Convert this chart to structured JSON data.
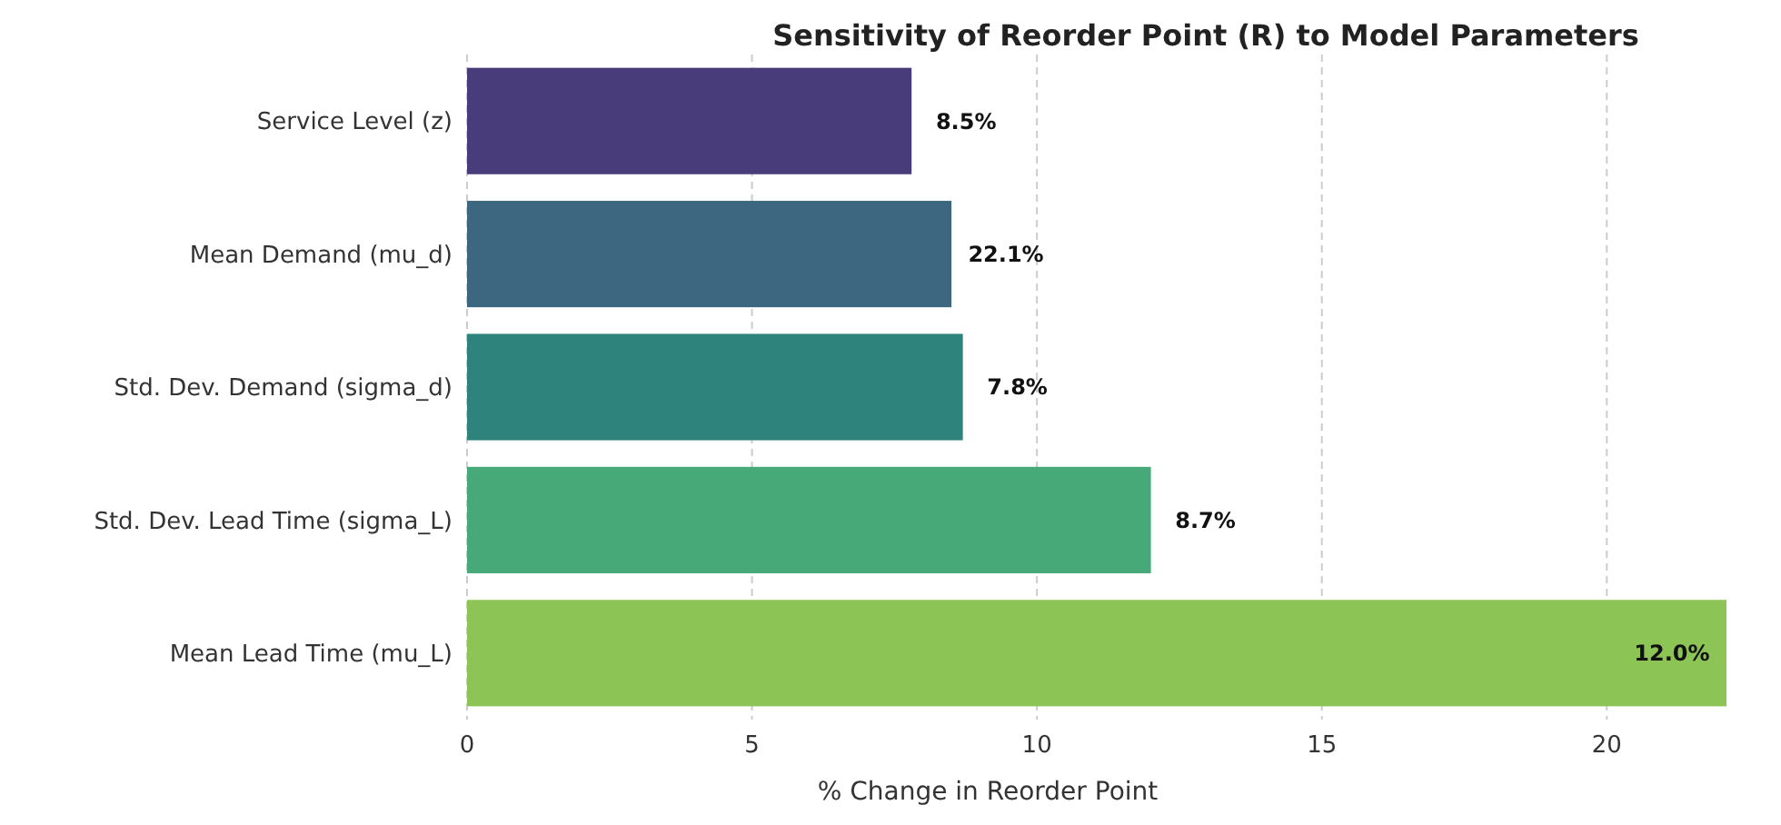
{
  "chart_data": {
    "type": "bar",
    "orientation": "horizontal",
    "title": "Sensitivity of Reorder Point (R) to Model Parameters",
    "xlabel": "% Change in Reorder Point",
    "categories": [
      "Service Level (z)",
      "Mean Demand (mu_d)",
      "Std. Dev. Demand (sigma_d)",
      "Std. Dev. Lead Time (sigma_L)",
      "Mean Lead Time (mu_L)"
    ],
    "values": [
      7.8,
      8.5,
      8.7,
      12.0,
      22.1
    ],
    "colors": [
      "#483d7a",
      "#3d6680",
      "#2e837c",
      "#47a878",
      "#8cc456"
    ],
    "annotations": [
      "8.5%",
      "22.1%",
      "7.8%",
      "8.7%",
      "12.0%"
    ],
    "xlim": [
      0,
      22.1
    ],
    "xticks": [
      0,
      5,
      10,
      15,
      20
    ],
    "grid": "x"
  }
}
